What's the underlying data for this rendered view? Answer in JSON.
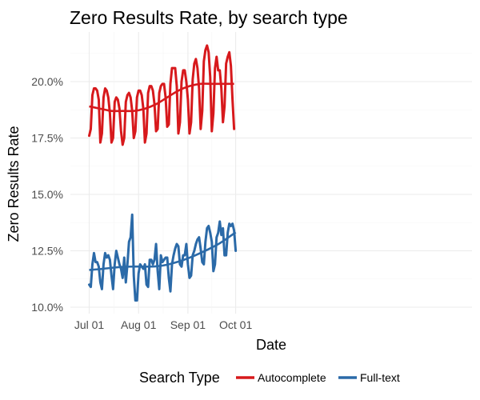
{
  "chart_data": {
    "type": "line",
    "title": "Zero Results Rate, by search type",
    "xlabel": "Date",
    "ylabel": "Zero Results Rate",
    "x_ticks": [
      "Jul 01",
      "Aug 01",
      "Sep 01",
      "Oct 01"
    ],
    "y_ticks": [
      "10.0%",
      "12.5%",
      "15.0%",
      "17.5%",
      "20.0%"
    ],
    "ylim": [
      9.8,
      22.0
    ],
    "grid": true,
    "legend_placement": "bottom",
    "legend_title": "Search Type",
    "x_start": "2016-07-01",
    "series": [
      {
        "name": "Autocomplete",
        "color": "#d7191c",
        "values": [
          17.6,
          17.9,
          19.4,
          19.7,
          19.7,
          19.6,
          19.2,
          17.3,
          17.7,
          19.3,
          19.7,
          19.6,
          19.3,
          18.6,
          17.3,
          17.5,
          19.1,
          19.3,
          19.2,
          18.8,
          17.8,
          17.2,
          17.5,
          19.1,
          19.4,
          19.5,
          19.3,
          18.7,
          17.5,
          17.8,
          19.3,
          19.6,
          19.6,
          19.4,
          18.8,
          17.3,
          17.7,
          19.5,
          19.8,
          19.8,
          19.6,
          19.0,
          17.8,
          17.9,
          19.5,
          19.8,
          19.9,
          19.9,
          19.3,
          18.0,
          18.1,
          19.9,
          20.6,
          20.6,
          20.6,
          19.8,
          17.7,
          18.2,
          20.0,
          20.5,
          20.5,
          20.0,
          19.2,
          17.7,
          18.2,
          20.1,
          20.8,
          21.0,
          20.6,
          19.7,
          17.9,
          18.7,
          20.9,
          21.4,
          21.6,
          21.3,
          20.2,
          17.8,
          18.6,
          20.6,
          21.1,
          20.5,
          20.5,
          19.7,
          18.2,
          18.9,
          20.8,
          21.1,
          21.3,
          20.7,
          19.2,
          17.9
        ],
        "trend": [
          18.9,
          18.8,
          18.7,
          18.7,
          18.7,
          18.8,
          19.0,
          19.3,
          19.6,
          19.8,
          19.9,
          19.9,
          19.9,
          19.9
        ]
      },
      {
        "name": "Full-text",
        "color": "#2b6aa8",
        "values": [
          11.0,
          10.9,
          11.9,
          12.4,
          12.0,
          12.0,
          11.8,
          11.1,
          10.8,
          11.9,
          12.4,
          12.2,
          12.3,
          12.1,
          11.4,
          10.8,
          11.9,
          12.5,
          12.2,
          11.9,
          11.7,
          11.3,
          12.2,
          11.1,
          11.9,
          12.9,
          13.1,
          14.1,
          11.4,
          10.3,
          10.3,
          11.5,
          11.9,
          11.8,
          11.7,
          11.9,
          11.0,
          10.9,
          12.1,
          12.1,
          11.9,
          12.1,
          12.8,
          11.6,
          10.8,
          12.3,
          12.0,
          12.1,
          12.2,
          12.2,
          11.3,
          10.7,
          11.9,
          12.3,
          12.6,
          12.8,
          12.7,
          11.9,
          11.8,
          12.3,
          12.3,
          12.8,
          11.9,
          11.3,
          11.4,
          12.3,
          12.5,
          12.8,
          13.0,
          13.1,
          12.6,
          12.0,
          11.9,
          12.9,
          13.5,
          13.6,
          13.3,
          12.9,
          11.6,
          11.9,
          13.1,
          13.3,
          13.8,
          13.2,
          13.5,
          12.3,
          12.3,
          13.3,
          13.7,
          13.6,
          13.7,
          13.4,
          12.5
        ],
        "trend": [
          11.65,
          11.68,
          11.72,
          11.76,
          11.79,
          11.8,
          11.8,
          11.8,
          11.82,
          11.88,
          11.98,
          12.1,
          12.25,
          12.42,
          12.6,
          12.8,
          13.05,
          13.32
        ]
      }
    ]
  }
}
